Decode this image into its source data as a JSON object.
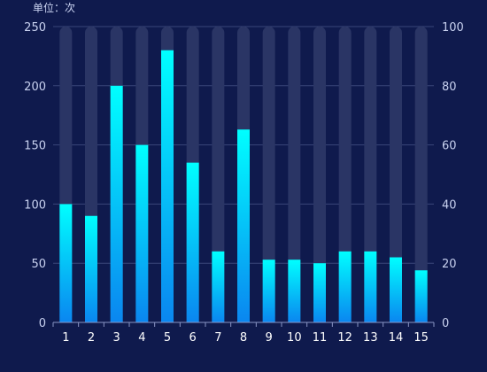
{
  "chart_data": {
    "type": "bar",
    "unit_label": "单位：次",
    "categories": [
      "1",
      "2",
      "3",
      "4",
      "5",
      "6",
      "7",
      "8",
      "9",
      "10",
      "11",
      "12",
      "13",
      "14",
      "15"
    ],
    "values": [
      100,
      90,
      200,
      150,
      230,
      135,
      60,
      163,
      53,
      53,
      50,
      60,
      60,
      55,
      44
    ],
    "background_bar_value": 250,
    "ylim_left": [
      0,
      250
    ],
    "yticks_left": [
      0,
      50,
      100,
      150,
      200,
      250
    ],
    "ylim_right": [
      0,
      100
    ],
    "yticks_right": [
      0,
      20,
      40,
      60,
      80,
      100
    ],
    "grid": true,
    "colors": {
      "background": "#0f1a4d",
      "bar_top": "#00ffff",
      "bar_bottom": "#0a86f0",
      "track": "#2a3565",
      "grid": "#3a4679",
      "axis": "#8a95c5"
    }
  }
}
